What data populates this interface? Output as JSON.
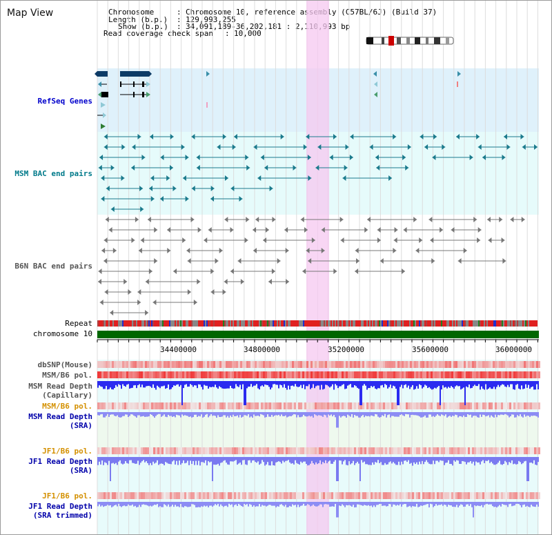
{
  "header": {
    "title": "Map View",
    "chromosome_key": "Chromosome",
    "chromosome_value": "Chromosome 10, reference assembly (C57BL/6J) (Build 37)",
    "length_key": "Length (b.p.)",
    "length_value": "129,993,255",
    "show_key": "Show (b.p.)",
    "show_value": "34,091,189-36,202,181 : 2,110,993 bp",
    "coverage_key": "Read coverage check span",
    "coverage_value": "10,000",
    "sep": ":"
  },
  "tracks": {
    "refseq": "RefSeq Genes",
    "msm_bac": "MSM BAC end pairs",
    "b6n_bac": "B6N BAC end pairs",
    "repeat": "Repeat",
    "chromosome": "chromosome 10",
    "dbsnp": "dbSNP(Mouse)",
    "msm_b6_pol_1": "MSM/B6 pol.",
    "msm_read_depth_cap_1": "MSM Read Depth",
    "msm_read_depth_cap_2": "(Capillary)",
    "msm_b6_pol_2": "MSM/B6 pol.",
    "msm_read_depth_sra_1": "MSM Read Depth",
    "msm_read_depth_sra_2": "(SRA)",
    "jf1_b6_pol_1": "JF1/B6 pol.",
    "jf1_read_depth_sra_1": "JF1 Read Depth",
    "jf1_read_depth_sra_2": "(SRA)",
    "jf1_b6_pol_2": "JF1/B6 pol.",
    "jf1_read_depth_trim_1": "JF1 Read Depth",
    "jf1_read_depth_trim_2": "(SRA trimmed)"
  },
  "axis": {
    "ticks": [
      "34400000",
      "34800000",
      "35200000",
      "35600000",
      "36000000"
    ]
  },
  "colors": {
    "refseq_bg": "#dff1fb",
    "msm_bg": "#e6fbfb",
    "highlight": "#f6c8f0",
    "chromosome_bar": "#006600",
    "bac_teal": "#1a7a8c",
    "bac_gray": "#777777",
    "depth_blue": "#2b2bf0",
    "depth_light": "#8c8cf4",
    "pol_red": "#f04040"
  }
}
